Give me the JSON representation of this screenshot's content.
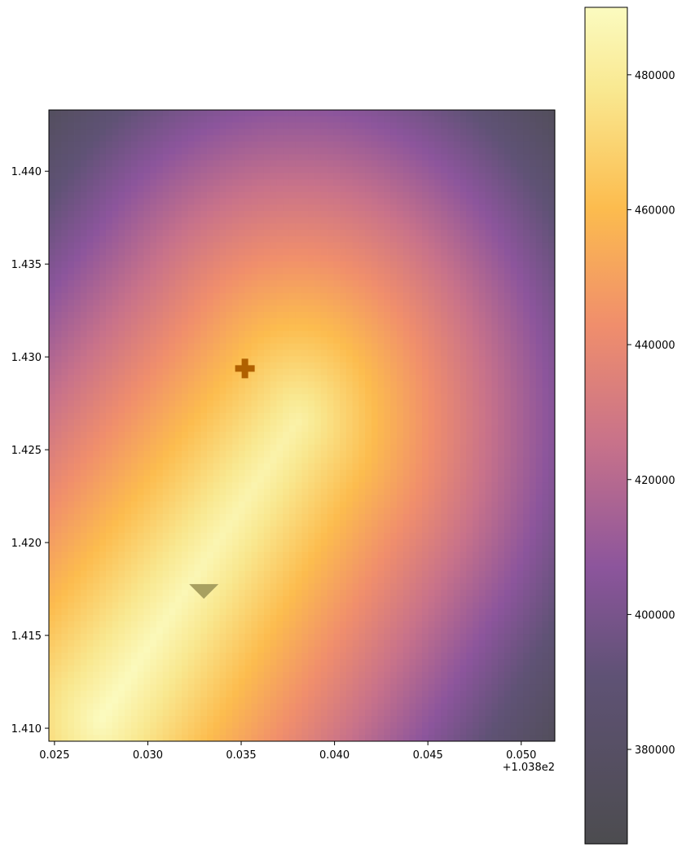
{
  "chart_data": {
    "type": "heatmap",
    "title": "",
    "xlabel": "",
    "ylabel": "",
    "x_offset_label": "+1.038e2",
    "xlim": [
      0.0247,
      0.0518
    ],
    "ylim": [
      1.4093,
      1.4433
    ],
    "x_ticks": [
      {
        "value": 0.025,
        "label": "0.025"
      },
      {
        "value": 0.03,
        "label": "0.030"
      },
      {
        "value": 0.035,
        "label": "0.035"
      },
      {
        "value": 0.04,
        "label": "0.040"
      },
      {
        "value": 0.045,
        "label": "0.045"
      },
      {
        "value": 0.05,
        "label": "0.050"
      }
    ],
    "y_ticks": [
      {
        "value": 1.41,
        "label": "1.410"
      },
      {
        "value": 1.415,
        "label": "1.415"
      },
      {
        "value": 1.42,
        "label": "1.420"
      },
      {
        "value": 1.425,
        "label": "1.425"
      },
      {
        "value": 1.43,
        "label": "1.430"
      },
      {
        "value": 1.435,
        "label": "1.435"
      },
      {
        "value": 1.44,
        "label": "1.440"
      }
    ],
    "colorbar": {
      "colormap": "inferno-like",
      "range": [
        366000,
        490000
      ],
      "ticks": [
        {
          "value": 380000,
          "label": "380000"
        },
        {
          "value": 400000,
          "label": "400000"
        },
        {
          "value": 420000,
          "label": "420000"
        },
        {
          "value": 440000,
          "label": "440000"
        },
        {
          "value": 460000,
          "label": "460000"
        },
        {
          "value": 480000,
          "label": "480000"
        }
      ]
    },
    "field": {
      "ridge_start": [
        0.0275,
        1.4105
      ],
      "ridge_end": [
        0.038,
        1.4265
      ],
      "peak_value": 489000,
      "min_value": 366000
    },
    "markers": [
      {
        "name": "cross-marker",
        "shape": "plus",
        "x": 0.0352,
        "y": 1.4292,
        "color": "#b06000"
      },
      {
        "name": "triangle-marker",
        "shape": "triangle-down",
        "x": 0.033,
        "y": 1.4175,
        "color": "#a8a060"
      }
    ]
  }
}
